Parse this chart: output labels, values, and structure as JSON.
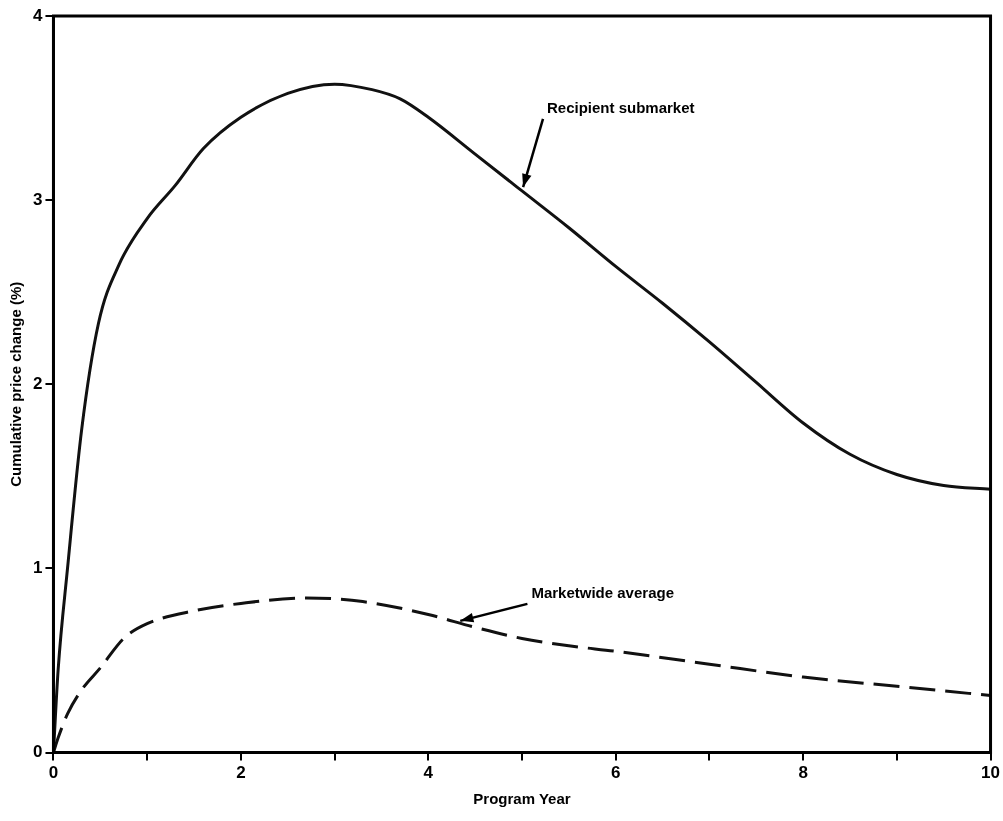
{
  "chart_data": {
    "type": "line",
    "xlabel": "Program Year",
    "ylabel": "Cumulative price change (%)",
    "xlim": [
      0,
      10
    ],
    "ylim": [
      0,
      4
    ],
    "xticks": [
      0,
      {
        "value": 1,
        "label": null
      },
      2,
      {
        "value": 3,
        "label": null
      },
      4,
      {
        "value": 5,
        "label": null
      },
      6,
      {
        "value": 7,
        "label": null
      },
      8,
      {
        "value": 9,
        "label": null
      },
      10
    ],
    "yticks": [
      0,
      1,
      2,
      3,
      4
    ],
    "grid": false,
    "legend": false,
    "marker": "none",
    "series": [
      {
        "color": "#111111",
        "line_style": "solid",
        "x": [
          0,
          0.05,
          0.15,
          0.3,
          0.48,
          0.7,
          1.0,
          1.3,
          1.6,
          2.0,
          2.5,
          3.0,
          3.4,
          3.7,
          4.0,
          4.5,
          5.0,
          5.5,
          6.0,
          6.5,
          7.0,
          7.5,
          8.0,
          8.5,
          9.0,
          9.5,
          10
        ],
        "values": [
          0,
          0.45,
          1.0,
          1.75,
          2.33,
          2.65,
          2.9,
          3.08,
          3.28,
          3.45,
          3.58,
          3.63,
          3.6,
          3.55,
          3.45,
          3.25,
          3.05,
          2.85,
          2.64,
          2.44,
          2.23,
          2.01,
          1.79,
          1.62,
          1.51,
          1.45,
          1.43
        ]
      },
      {
        "color": "#111111",
        "line_style": "dashed",
        "x": [
          0,
          0.05,
          0.15,
          0.3,
          0.5,
          0.75,
          1.0,
          1.5,
          2.0,
          2.7,
          3.3,
          4.0,
          4.5,
          5.0,
          5.5,
          6.0,
          7.0,
          8.0,
          9.0,
          10
        ],
        "values": [
          0,
          0.08,
          0.21,
          0.34,
          0.46,
          0.62,
          0.7,
          0.77,
          0.81,
          0.84,
          0.82,
          0.75,
          0.68,
          0.62,
          0.58,
          0.55,
          0.48,
          0.41,
          0.36,
          0.31
        ]
      }
    ],
    "annotations": [
      {
        "text": "Recipient submarket",
        "x": 5,
        "y": 3.05
      },
      {
        "text": "Marketwide average",
        "x": 4.3,
        "y": 0.71
      }
    ]
  }
}
